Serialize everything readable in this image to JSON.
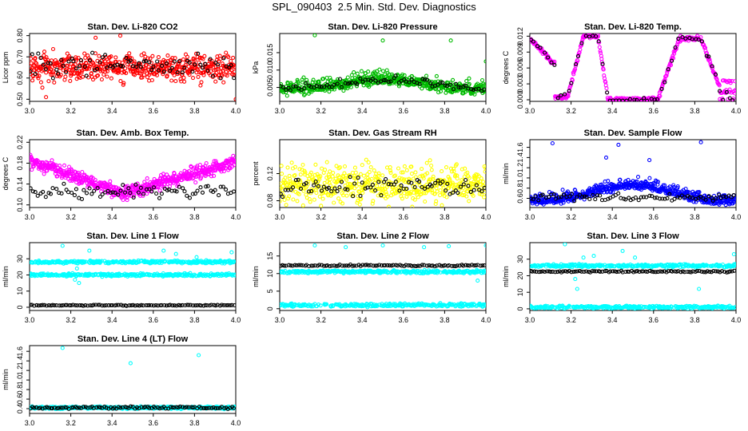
{
  "title": "SPL_090403  2.5 Min. Std. Dev. Diagnostics",
  "chart_data": [
    {
      "type": "scatter",
      "title": "Stan. Dev. Li-820 CO2",
      "ylabel": "Licor ppm",
      "xlim": [
        3.0,
        4.0
      ],
      "ylim": [
        0.49,
        0.81
      ],
      "xticks": [
        3.0,
        3.2,
        3.4,
        3.6,
        3.8,
        4.0
      ],
      "yticks": [
        0.5,
        0.6,
        0.7,
        0.8
      ],
      "yticklabels": [
        "0.50",
        "0.60",
        "0.70",
        "0.80"
      ],
      "series": [
        {
          "name": "colored",
          "color": "#ff0000",
          "pattern": "noisy",
          "base": 0.65,
          "spread": 0.06,
          "n": 520,
          "outliers": [
            [
              3.08,
              0.51
            ],
            [
              3.32,
              0.79
            ],
            [
              3.44,
              0.8
            ],
            [
              4.0,
              0.5
            ]
          ]
        },
        {
          "name": "black",
          "color": "#000000",
          "pattern": "noisy",
          "base": 0.66,
          "spread": 0.045,
          "n": 80
        }
      ]
    },
    {
      "type": "scatter",
      "title": "Stan. Dev. Li-820 Pressure",
      "ylabel": "kPa",
      "xlim": [
        3.0,
        4.0
      ],
      "ylim": [
        0.001,
        0.0205
      ],
      "xticks": [
        3.0,
        3.2,
        3.4,
        3.6,
        3.8,
        4.0
      ],
      "yticks": [
        0.005,
        0.01,
        0.015
      ],
      "yticklabels": [
        "0.005",
        "0.010",
        "0.015"
      ],
      "series": [
        {
          "name": "colored",
          "color": "#00bb00",
          "pattern": "hump",
          "base": 0.006,
          "spread": 0.0022,
          "n": 560,
          "outliers": [
            [
              3.17,
              0.02
            ],
            [
              3.5,
              0.0185
            ],
            [
              3.83,
              0.0185
            ],
            [
              4.0,
              0.0125
            ]
          ]
        },
        {
          "name": "black",
          "color": "#000000",
          "pattern": "hump",
          "base": 0.006,
          "spread": 0.0012,
          "n": 80
        }
      ]
    },
    {
      "type": "scatter",
      "title": "Stan. Dev. Li-820 Temp.",
      "ylabel": "degrees C",
      "xlim": [
        3.0,
        4.0
      ],
      "ylim": [
        -0.0003,
        0.0125
      ],
      "xticks": [
        3.0,
        3.2,
        3.4,
        3.6,
        3.8,
        4.0
      ],
      "yticks": [
        0.0,
        0.003,
        0.006,
        0.009,
        0.012
      ],
      "yticklabels": [
        "0.000",
        "0.003",
        "0.006",
        "0.009",
        "0.012"
      ],
      "series": [
        {
          "name": "colored",
          "color": "#ff00ff",
          "pattern": "temp",
          "n": 420
        },
        {
          "name": "black",
          "color": "#000000",
          "pattern": "temp",
          "n": 60
        }
      ]
    },
    {
      "type": "scatter",
      "title": "Stan. Dev. Amb. Box Temp.",
      "ylabel": "degrees C",
      "xlim": [
        3.0,
        4.0
      ],
      "ylim": [
        0.095,
        0.225
      ],
      "xticks": [
        3.0,
        3.2,
        3.4,
        3.6,
        3.8,
        4.0
      ],
      "yticks": [
        0.1,
        0.14,
        0.18,
        0.22
      ],
      "yticklabels": [
        "0.10",
        "0.14",
        "0.18",
        "0.22"
      ],
      "series": [
        {
          "name": "colored",
          "color": "#ff00ff",
          "pattern": "vshape",
          "n": 600
        },
        {
          "name": "black",
          "color": "#000000",
          "pattern": "noisy",
          "base": 0.125,
          "spread": 0.012,
          "n": 80
        }
      ]
    },
    {
      "type": "scatter",
      "title": "Stan. Dev. Gas Stream RH",
      "ylabel": "percent",
      "xlim": [
        3.0,
        4.0
      ],
      "ylim": [
        0.07,
        0.17
      ],
      "xticks": [
        3.0,
        3.2,
        3.4,
        3.6,
        3.8,
        4.0
      ],
      "yticks": [
        0.08,
        0.12
      ],
      "yticklabels": [
        "0.08",
        "0.12"
      ],
      "series": [
        {
          "name": "colored",
          "color": "#ffff00",
          "pattern": "noisy",
          "base": 0.105,
          "spread": 0.025,
          "n": 520
        },
        {
          "name": "black",
          "color": "#000000",
          "pattern": "noisy",
          "base": 0.1,
          "spread": 0.012,
          "n": 80
        }
      ]
    },
    {
      "type": "scatter",
      "title": "Stan. Dev. Sample Flow",
      "ylabel": "ml/min",
      "xlim": [
        3.0,
        4.0
      ],
      "ylim": [
        0.42,
        1.75
      ],
      "xticks": [
        3.0,
        3.2,
        3.4,
        3.6,
        3.8,
        4.0
      ],
      "yticks": [
        0.6,
        0.8,
        1.0,
        1.2,
        1.4,
        1.6
      ],
      "yticklabels": [
        "0.6",
        "0.8",
        "1.0",
        "1.2",
        "1.4",
        "1.6"
      ],
      "series": [
        {
          "name": "colored",
          "color": "#0000ff",
          "pattern": "hump",
          "base": 0.72,
          "spread": 0.12,
          "n": 560,
          "outliers": [
            [
              3.11,
              1.68
            ],
            [
              3.43,
              1.65
            ],
            [
              3.83,
              1.7
            ],
            [
              3.37,
              1.4
            ],
            [
              3.58,
              1.35
            ]
          ]
        },
        {
          "name": "black",
          "color": "#000000",
          "pattern": "noisy",
          "base": 0.62,
          "spread": 0.06,
          "n": 80
        }
      ]
    },
    {
      "type": "scatter",
      "title": "Stan. Dev. Line 1 Flow",
      "ylabel": "ml/min",
      "xlim": [
        3.0,
        4.0
      ],
      "ylim": [
        -2,
        40
      ],
      "xticks": [
        3.0,
        3.2,
        3.4,
        3.6,
        3.8,
        4.0
      ],
      "yticks": [
        0,
        10,
        20,
        30
      ],
      "yticklabels": [
        "0",
        "10",
        "20",
        "30"
      ],
      "series": [
        {
          "name": "colored",
          "color": "#00ffff",
          "pattern": "bands",
          "bands": [
            28,
            20
          ],
          "spread": 0.8,
          "n": 600,
          "outliers": [
            [
              3.16,
              38
            ],
            [
              3.22,
              17
            ],
            [
              3.23,
              24
            ],
            [
              3.24,
              15
            ],
            [
              3.29,
              35
            ],
            [
              3.65,
              35
            ],
            [
              3.71,
              33
            ],
            [
              3.81,
              31
            ],
            [
              3.98,
              34
            ]
          ]
        },
        {
          "name": "black",
          "color": "#000000",
          "pattern": "flat",
          "base": 1.2,
          "spread": 0.3,
          "n": 100
        }
      ]
    },
    {
      "type": "scatter",
      "title": "Stan. Dev. Line 2 Flow",
      "ylabel": "ml/min",
      "xlim": [
        3.0,
        4.0
      ],
      "ylim": [
        -0.5,
        18.8
      ],
      "xticks": [
        3.0,
        3.2,
        3.4,
        3.6,
        3.8,
        4.0
      ],
      "yticks": [
        0,
        5,
        10,
        15
      ],
      "yticklabels": [
        "0",
        "5",
        "10",
        "15"
      ],
      "series": [
        {
          "name": "colored",
          "color": "#00ffff",
          "pattern": "bands",
          "bands": [
            10.5,
            1.0
          ],
          "spread": 0.4,
          "n": 600,
          "outliers": [
            [
              3.17,
              18
            ],
            [
              3.32,
              17.5
            ],
            [
              3.5,
              18
            ],
            [
              3.7,
              17.5
            ],
            [
              3.82,
              17.8
            ],
            [
              4.0,
              18
            ],
            [
              3.96,
              8
            ]
          ]
        },
        {
          "name": "black",
          "color": "#000000",
          "pattern": "flat",
          "base": 12.3,
          "spread": 0.2,
          "n": 100
        }
      ]
    },
    {
      "type": "scatter",
      "title": "Stan. Dev. Line 3 Flow",
      "ylabel": "ml/min",
      "xlim": [
        3.0,
        4.0
      ],
      "ylim": [
        -1,
        40
      ],
      "xticks": [
        3.0,
        3.2,
        3.4,
        3.6,
        3.8,
        4.0
      ],
      "yticks": [
        0,
        10,
        20,
        30
      ],
      "yticklabels": [
        "0",
        "10",
        "20",
        "30"
      ],
      "series": [
        {
          "name": "colored",
          "color": "#00ffff",
          "pattern": "bands",
          "bands": [
            26,
            1.0
          ],
          "spread": 0.8,
          "n": 600,
          "outliers": [
            [
              3.17,
              39
            ],
            [
              3.22,
              18
            ],
            [
              3.23,
              12
            ],
            [
              3.26,
              31
            ],
            [
              3.31,
              32
            ],
            [
              3.45,
              35
            ],
            [
              3.51,
              31
            ],
            [
              3.82,
              12
            ],
            [
              3.99,
              33
            ]
          ]
        },
        {
          "name": "black",
          "color": "#000000",
          "pattern": "flat",
          "base": 22.5,
          "spread": 0.4,
          "n": 100
        }
      ]
    },
    {
      "type": "scatter",
      "title": "Stan. Dev. Line 4 (LT) Flow",
      "ylabel": "ml/min",
      "xlim": [
        3.0,
        4.0
      ],
      "ylim": [
        0.3,
        1.72
      ],
      "xticks": [
        3.0,
        3.2,
        3.4,
        3.6,
        3.8,
        4.0
      ],
      "yticks": [
        0.4,
        0.6,
        0.8,
        1.0,
        1.2,
        1.4,
        1.6
      ],
      "yticklabels": [
        "0.4",
        "0.6",
        "0.8",
        "1.0",
        "1.2",
        "1.4",
        "1.6"
      ],
      "series": [
        {
          "name": "colored",
          "color": "#00ffff",
          "pattern": "flat",
          "base": 0.42,
          "spread": 0.02,
          "n": 600,
          "outliers": [
            [
              3.16,
              1.67
            ],
            [
              3.49,
              1.35
            ],
            [
              3.82,
              1.52
            ]
          ]
        },
        {
          "name": "black",
          "color": "#000000",
          "pattern": "flat",
          "base": 0.42,
          "spread": 0.025,
          "n": 100
        }
      ]
    }
  ]
}
